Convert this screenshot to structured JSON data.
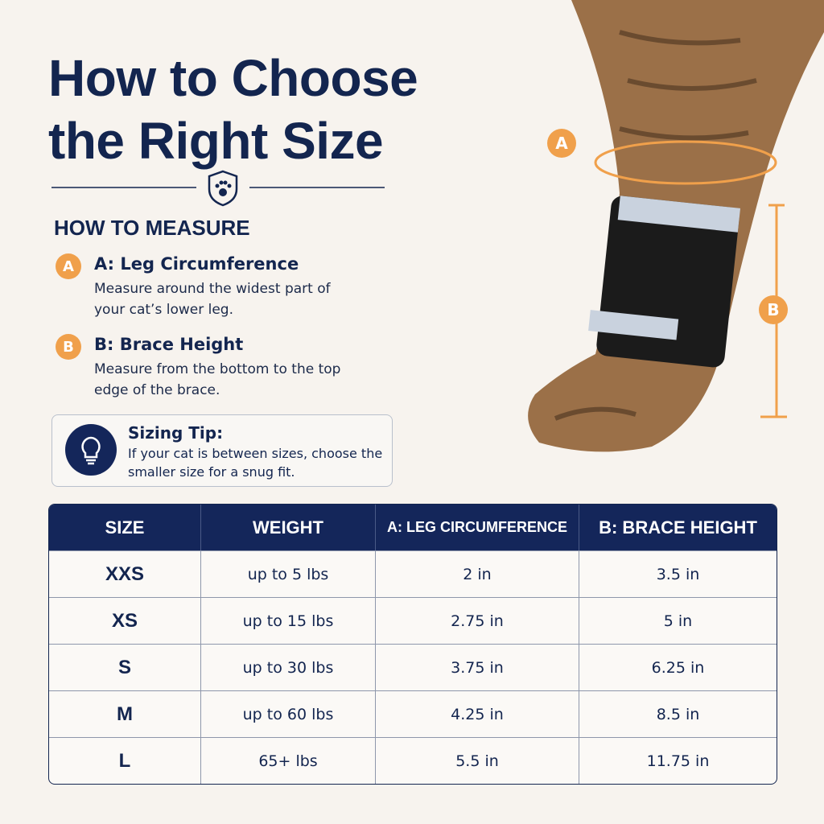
{
  "header": {
    "title": "How to Choose the Right Size"
  },
  "measure": {
    "heading": "HOW TO MEASURE",
    "items": [
      {
        "badge": "A",
        "title": "A: Leg Circumference",
        "text": "Measure around the widest part of your cat’s lower leg."
      },
      {
        "badge": "B",
        "title": "B: Brace Height",
        "text": "Measure from the bottom to the top edge of the brace."
      }
    ]
  },
  "tip": {
    "title": "Sizing Tip:",
    "text": "If your cat is between sizes, choose the smaller size for a snug fit."
  },
  "diagram": {
    "label_a": "A",
    "label_b": "B"
  },
  "table": {
    "headers": [
      "SIZE",
      "WEIGHT",
      "A: LEG CIRCUMFERENCE",
      "B: BRACE HEIGHT"
    ],
    "rows": [
      [
        "XXS",
        "up to 5 lbs",
        "2 in",
        "3.5 in"
      ],
      [
        "XS",
        "up to 15 lbs",
        "2.75 in",
        "5 in"
      ],
      [
        "S",
        "up to 30 lbs",
        "3.75 in",
        "6.25 in"
      ],
      [
        "M",
        "up to 60 lbs",
        "4.25 in",
        "8.5 in"
      ],
      [
        "L",
        "65+ lbs",
        "5.5 in",
        "11.75 in"
      ]
    ]
  }
}
